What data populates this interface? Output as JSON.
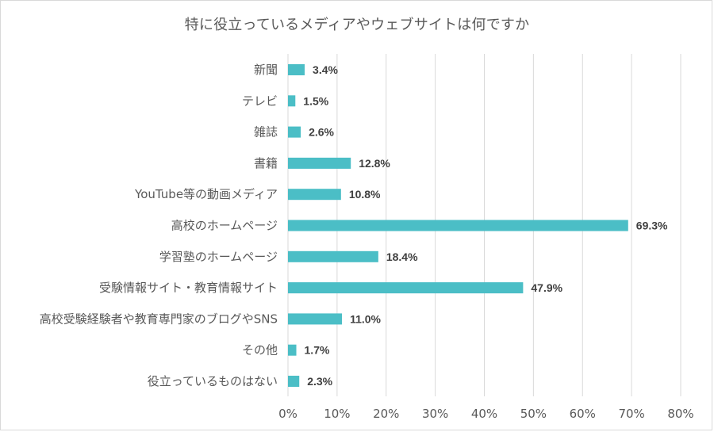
{
  "chart_data": {
    "type": "bar",
    "orientation": "horizontal",
    "title": "特に役立っているメディアやウェブサイトは何ですか",
    "categories": [
      "新聞",
      "テレビ",
      "雑誌",
      "書籍",
      "YouTube等の動画メディア",
      "高校のホームページ",
      "学習塾のホームページ",
      "受験情報サイト・教育情報サイト",
      "高校受験経験者や教育専門家のブログやSNS",
      "その他",
      "役立っているものはない"
    ],
    "values": [
      3.4,
      1.5,
      2.6,
      12.8,
      10.8,
      69.3,
      18.4,
      47.9,
      11.0,
      1.7,
      2.3
    ],
    "value_labels": [
      "3.4%",
      "1.5%",
      "2.6%",
      "12.8%",
      "10.8%",
      "69.3%",
      "18.4%",
      "47.9%",
      "11.0%",
      "1.7%",
      "2.3%"
    ],
    "xlim": [
      0,
      80
    ],
    "x_ticks": [
      "0%",
      "10%",
      "20%",
      "30%",
      "40%",
      "50%",
      "60%",
      "70%",
      "80%"
    ],
    "bar_color": "#4bbec6",
    "gridline_color": "#d9d9d9",
    "grid": true,
    "legend": false
  }
}
